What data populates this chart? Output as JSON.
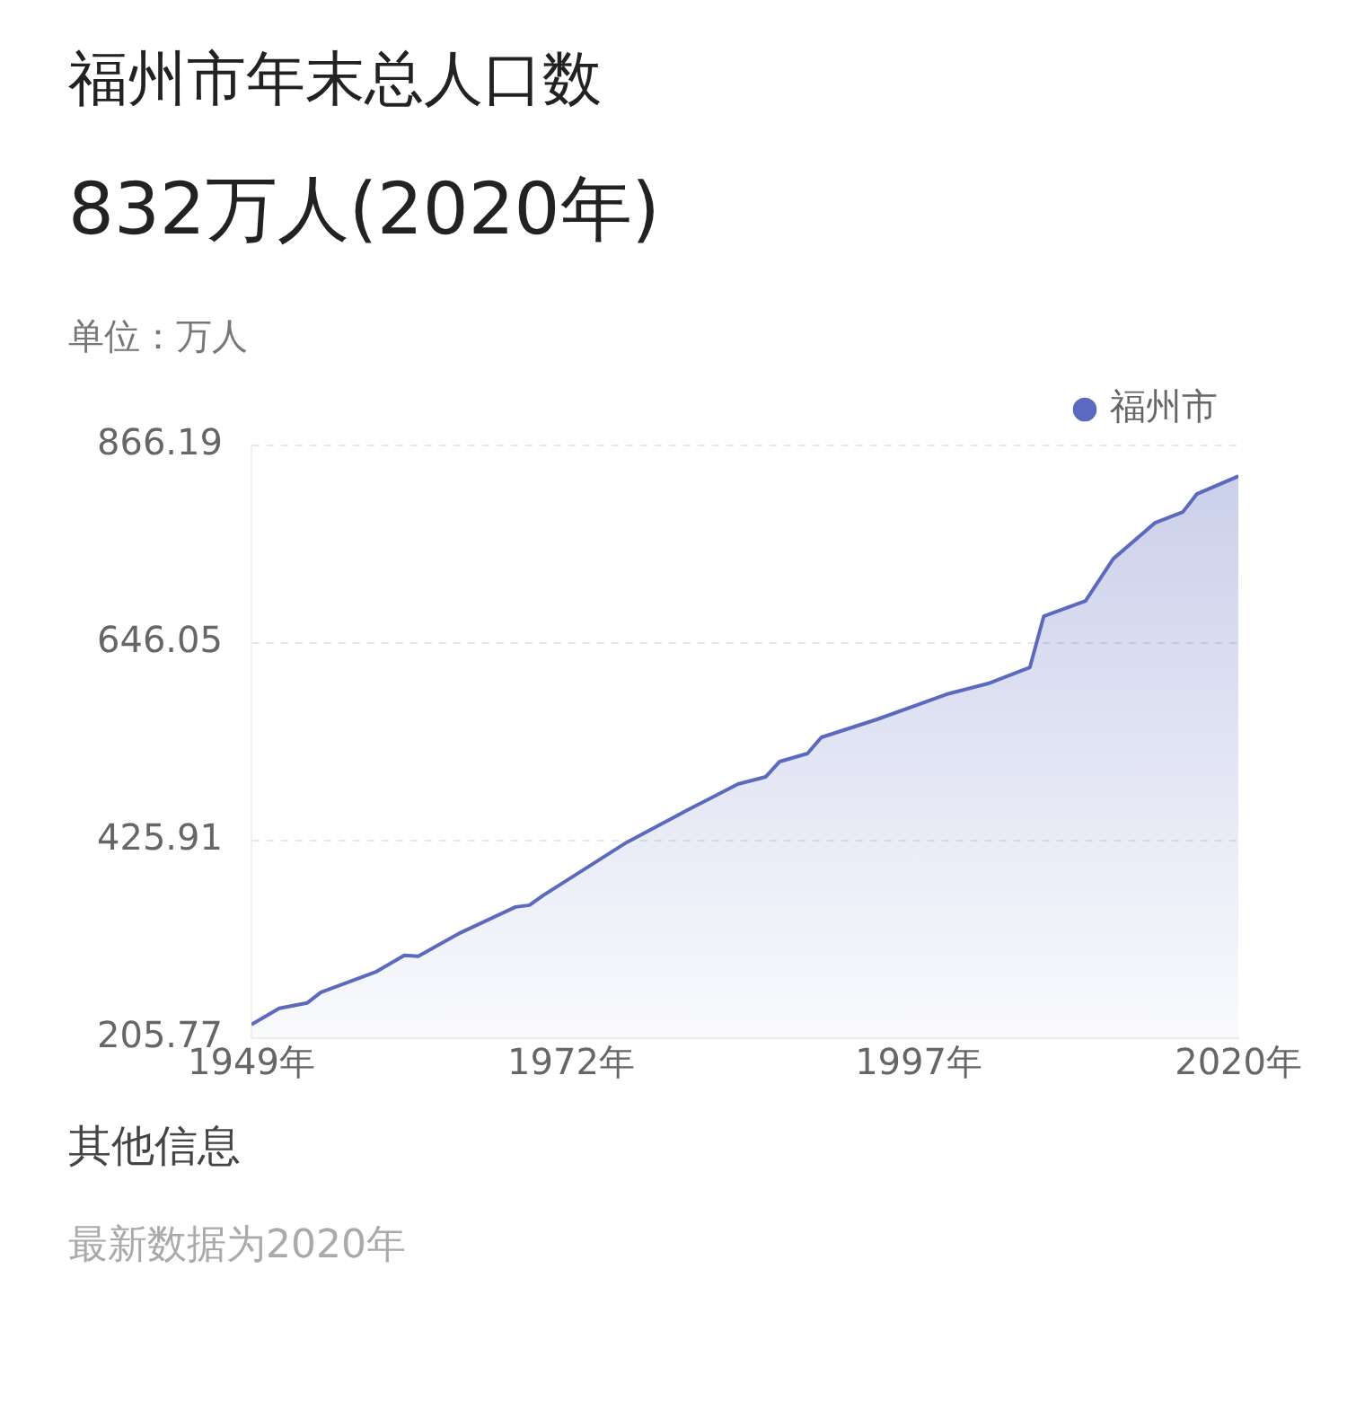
{
  "chart_data": {
    "type": "area",
    "title": "福州市年末总人口数",
    "subtitle": "832万人(2020年)",
    "ylabel": "单位：万人",
    "series": [
      {
        "name": "福州市",
        "color": "#5b6abf",
        "x": [
          1949,
          1951,
          1953,
          1954,
          1958,
          1960,
          1961,
          1964,
          1968,
          1969,
          1970,
          1976,
          1980,
          1982,
          1984,
          1986,
          1987,
          1989,
          1990,
          1994,
          1999,
          2002,
          2005,
          2006,
          2009,
          2011,
          2014,
          2016,
          2017,
          2020
        ],
        "values": [
          221,
          239,
          245,
          257,
          280,
          298,
          297,
          323,
          352,
          354,
          365,
          424,
          457,
          473,
          489,
          497,
          514,
          523,
          541,
          561,
          589,
          601,
          619,
          676,
          693,
          740,
          780,
          792,
          812,
          832
        ]
      }
    ],
    "xlim": [
      1949,
      2020
    ],
    "xticks": [
      {
        "value": 1949,
        "label": "1949年"
      },
      {
        "value": 1972,
        "label": "1972年"
      },
      {
        "value": 1997,
        "label": "1997年"
      },
      {
        "value": 2020,
        "label": "2020年"
      }
    ],
    "ylim": [
      205.77,
      866.19
    ],
    "yticks": [
      205.77,
      425.91,
      646.05,
      866.19
    ],
    "grid": "y",
    "legend": "top right",
    "marker": "none",
    "line_style": "solid",
    "annotations": [
      "其他信息",
      "最新数据为2020年"
    ]
  }
}
